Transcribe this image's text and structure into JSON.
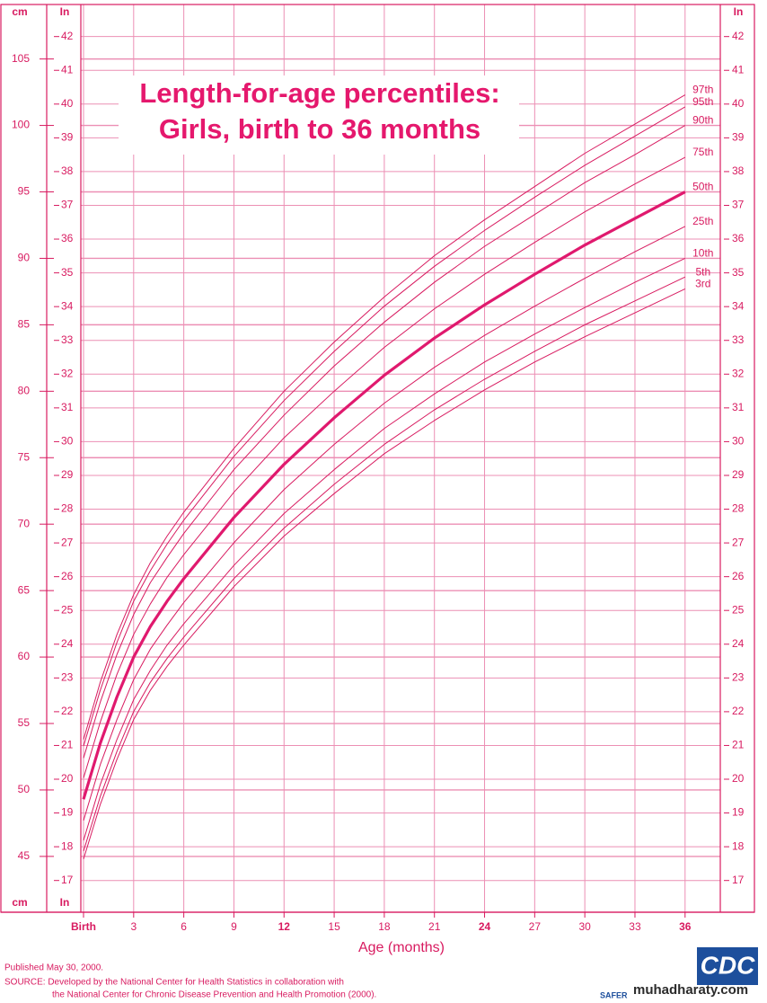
{
  "chart_data": {
    "type": "line",
    "title": "Length-for-age percentiles:",
    "subtitle": "Girls, birth to 36 months",
    "xlabel": "Age (months)",
    "ylabel": "cm",
    "y2label": "In",
    "x": [
      0,
      1,
      2,
      3,
      4,
      5,
      6,
      9,
      12,
      15,
      18,
      21,
      24,
      27,
      30,
      33,
      36
    ],
    "xlim": [
      0,
      38
    ],
    "xticks": [
      {
        "value": 0,
        "label": "Birth"
      },
      3,
      6,
      9,
      12,
      15,
      18,
      21,
      24,
      27,
      30,
      33,
      36
    ],
    "ylim": [
      40.8,
      109.1
    ],
    "yticks": [
      45,
      50,
      55,
      60,
      65,
      70,
      75,
      80,
      85,
      90,
      95,
      100,
      105
    ],
    "y2lim": [
      16.06,
      42.95
    ],
    "y2ticks": [
      17,
      18,
      19,
      20,
      21,
      22,
      23,
      24,
      25,
      26,
      27,
      28,
      29,
      30,
      31,
      32,
      33,
      34,
      35,
      36,
      37,
      38,
      39,
      40,
      41,
      42
    ],
    "grid": true,
    "grid_color": "#ec8fb4",
    "series": [
      {
        "name": "97th",
        "color": "#d81b60",
        "linewidth": 1,
        "values": [
          53.8,
          58.1,
          61.7,
          64.7,
          67.1,
          69.1,
          70.9,
          75.7,
          80.0,
          83.7,
          87.1,
          90.2,
          92.9,
          95.4,
          97.9,
          100.1,
          102.3
        ]
      },
      {
        "name": "95th",
        "color": "#d81b60",
        "linewidth": 1,
        "values": [
          53.3,
          57.5,
          61.1,
          64.2,
          66.5,
          68.5,
          70.3,
          75.1,
          79.3,
          83.0,
          86.4,
          89.4,
          92.1,
          94.6,
          97.0,
          99.2,
          101.4
        ]
      },
      {
        "name": "90th",
        "color": "#d81b60",
        "linewidth": 1,
        "values": [
          52.4,
          56.6,
          60.2,
          63.2,
          65.6,
          67.5,
          69.3,
          74.1,
          78.2,
          81.9,
          85.2,
          88.2,
          90.9,
          93.3,
          95.7,
          97.8,
          100.0
        ]
      },
      {
        "name": "75th",
        "color": "#d81b60",
        "linewidth": 1,
        "values": [
          50.9,
          55.1,
          58.7,
          61.7,
          64.0,
          66.0,
          67.7,
          72.4,
          76.5,
          80.0,
          83.3,
          86.2,
          88.8,
          91.2,
          93.5,
          95.6,
          97.6
        ]
      },
      {
        "name": "50th",
        "color": "#e0196e",
        "linewidth": 3.2,
        "values": [
          49.3,
          53.5,
          57.0,
          60.0,
          62.3,
          64.2,
          65.9,
          70.5,
          74.5,
          78.0,
          81.2,
          84.0,
          86.5,
          88.8,
          91.0,
          93.0,
          95.0
        ]
      },
      {
        "name": "25th",
        "color": "#d81b60",
        "linewidth": 1,
        "values": [
          47.7,
          51.9,
          55.3,
          58.3,
          60.6,
          62.4,
          64.1,
          68.6,
          72.6,
          76.0,
          79.1,
          81.8,
          84.2,
          86.4,
          88.5,
          90.5,
          92.4
        ]
      },
      {
        "name": "10th",
        "color": "#d81b60",
        "linewidth": 1,
        "values": [
          46.2,
          50.4,
          53.8,
          56.8,
          59.0,
          60.9,
          62.5,
          66.9,
          70.8,
          74.1,
          77.2,
          79.8,
          82.2,
          84.3,
          86.3,
          88.2,
          90.0
        ]
      },
      {
        "name": "5th",
        "color": "#d81b60",
        "linewidth": 1,
        "values": [
          45.4,
          49.5,
          52.9,
          55.9,
          58.1,
          59.9,
          61.5,
          65.9,
          69.7,
          73.0,
          76.0,
          78.6,
          80.9,
          83.0,
          85.0,
          86.8,
          88.6
        ]
      },
      {
        "name": "3rd",
        "color": "#d81b60",
        "linewidth": 1,
        "values": [
          44.8,
          48.9,
          52.3,
          55.3,
          57.5,
          59.3,
          60.9,
          65.3,
          69.1,
          72.3,
          75.3,
          77.8,
          80.1,
          82.2,
          84.1,
          85.9,
          87.7
        ]
      }
    ]
  },
  "footer": {
    "published": "Published May 30, 2000.",
    "source_1": "SOURCE: Developed by the National Center for Health Statistics in collaboration with",
    "source_2": "the National Center for Chronic Disease Prevention and Health Promotion (2000).",
    "logo": "CDC",
    "logo_motto": "SAFER",
    "watermark": "muhadharaty.com"
  }
}
